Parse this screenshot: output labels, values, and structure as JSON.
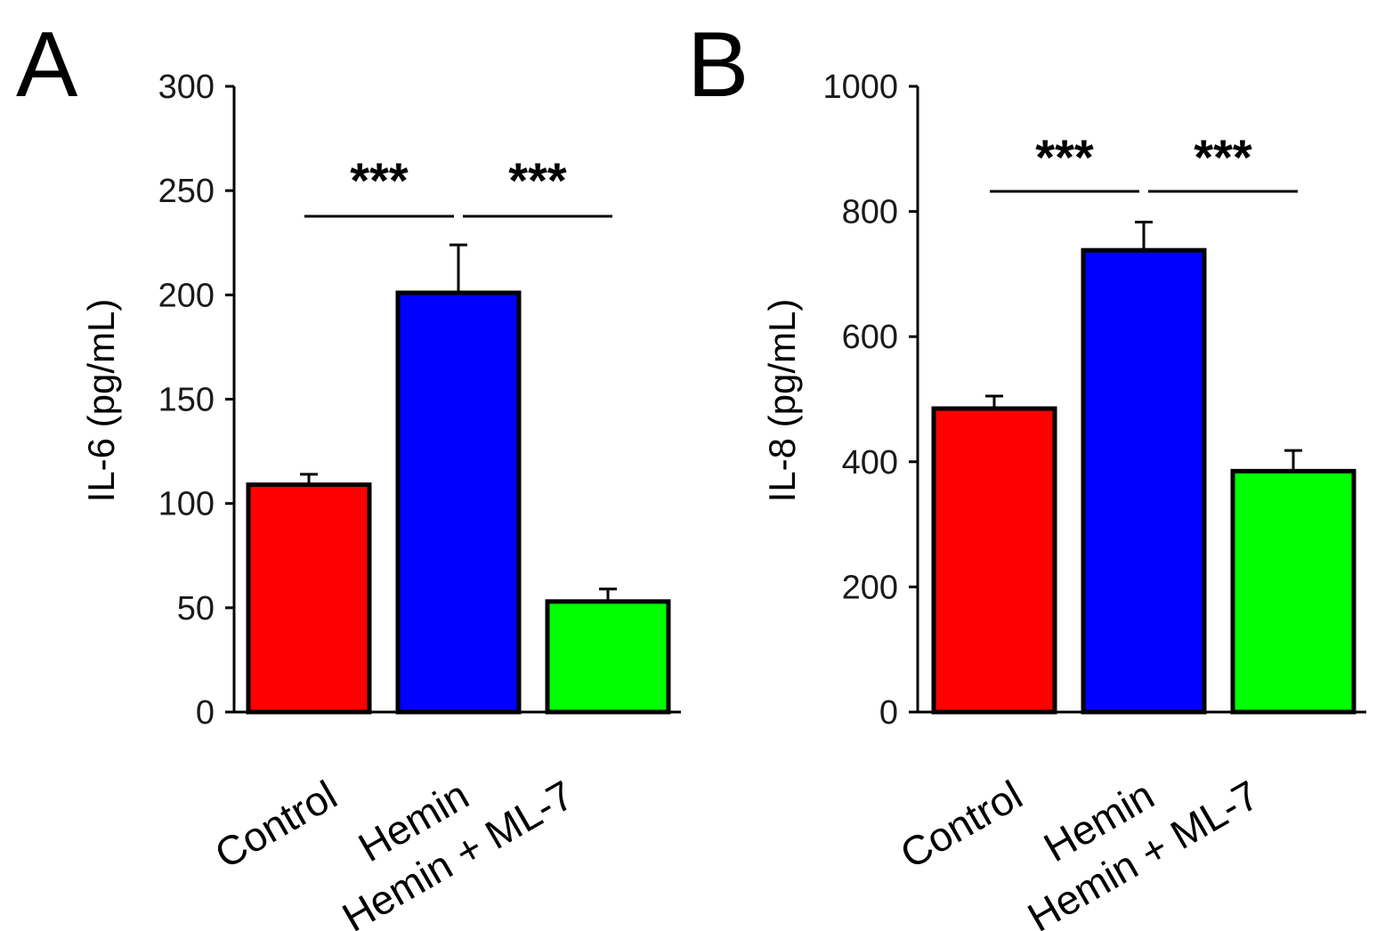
{
  "chart_data": [
    {
      "type": "bar",
      "panel": "A",
      "categories": [
        "Control",
        "Hemin",
        "Hemin + ML-7"
      ],
      "values": [
        109,
        201,
        53
      ],
      "errors": [
        5,
        23,
        6
      ],
      "colors": [
        "#ff0000",
        "#0000ff",
        "#00ff00"
      ],
      "ylabel": "IL-6 (pg/mL)",
      "ylim": [
        0,
        300
      ],
      "yticks": [
        0,
        50,
        100,
        150,
        200,
        250,
        300
      ],
      "significance": [
        {
          "from": 0,
          "to": 1,
          "label": "***"
        },
        {
          "from": 1,
          "to": 2,
          "label": "***"
        }
      ]
    },
    {
      "type": "bar",
      "panel": "B",
      "categories": [
        "Control",
        "Hemin",
        "Hemin + ML-7"
      ],
      "values": [
        485,
        738,
        385
      ],
      "errors": [
        20,
        45,
        33
      ],
      "colors": [
        "#ff0000",
        "#0000ff",
        "#00ff00"
      ],
      "ylabel": "IL-8 (pg/mL)",
      "ylim": [
        0,
        1000
      ],
      "yticks": [
        0,
        200,
        400,
        600,
        800,
        1000
      ],
      "significance": [
        {
          "from": 0,
          "to": 1,
          "label": "***"
        },
        {
          "from": 1,
          "to": 2,
          "label": "***"
        }
      ]
    }
  ]
}
